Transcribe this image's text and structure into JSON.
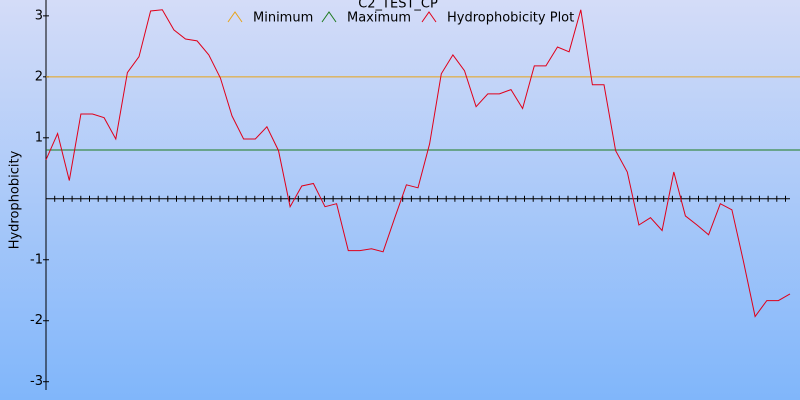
{
  "chart_data": {
    "type": "line",
    "title": "C2_TEST_CP",
    "y_label": "Hydrophobicity",
    "ylim": [
      -3.3,
      3.26
    ],
    "yticks": [
      -3,
      -2,
      -1,
      1,
      2,
      3
    ],
    "thresholds": [
      {
        "name": "Minimum",
        "color": "#e8a317",
        "value": 2
      },
      {
        "name": "Maximum",
        "color": "#1e7a1e",
        "value": 0.8
      }
    ],
    "series": [
      {
        "name": "Hydrophobicity Plot",
        "color": "#e0001a",
        "values": [
          0.64,
          1.07,
          0.3,
          1.39,
          1.39,
          1.33,
          0.98,
          2.07,
          2.33,
          3.08,
          3.1,
          2.77,
          2.62,
          2.59,
          2.36,
          1.98,
          1.36,
          0.98,
          0.98,
          1.18,
          0.79,
          -0.13,
          0.21,
          0.25,
          -0.13,
          -0.08,
          -0.85,
          -0.85,
          -0.82,
          -0.87,
          -0.31,
          0.23,
          0.18,
          0.9,
          2.05,
          2.36,
          2.1,
          1.51,
          1.72,
          1.72,
          1.79,
          1.48,
          2.18,
          2.18,
          2.49,
          2.41,
          3.1,
          1.87,
          1.87,
          0.79,
          0.44,
          -0.43,
          -0.31,
          -0.52,
          0.44,
          -0.28,
          -0.43,
          -0.59,
          -0.08,
          -0.18,
          -1.03,
          -1.93,
          -1.67,
          -1.67,
          -1.56
        ]
      }
    ]
  }
}
